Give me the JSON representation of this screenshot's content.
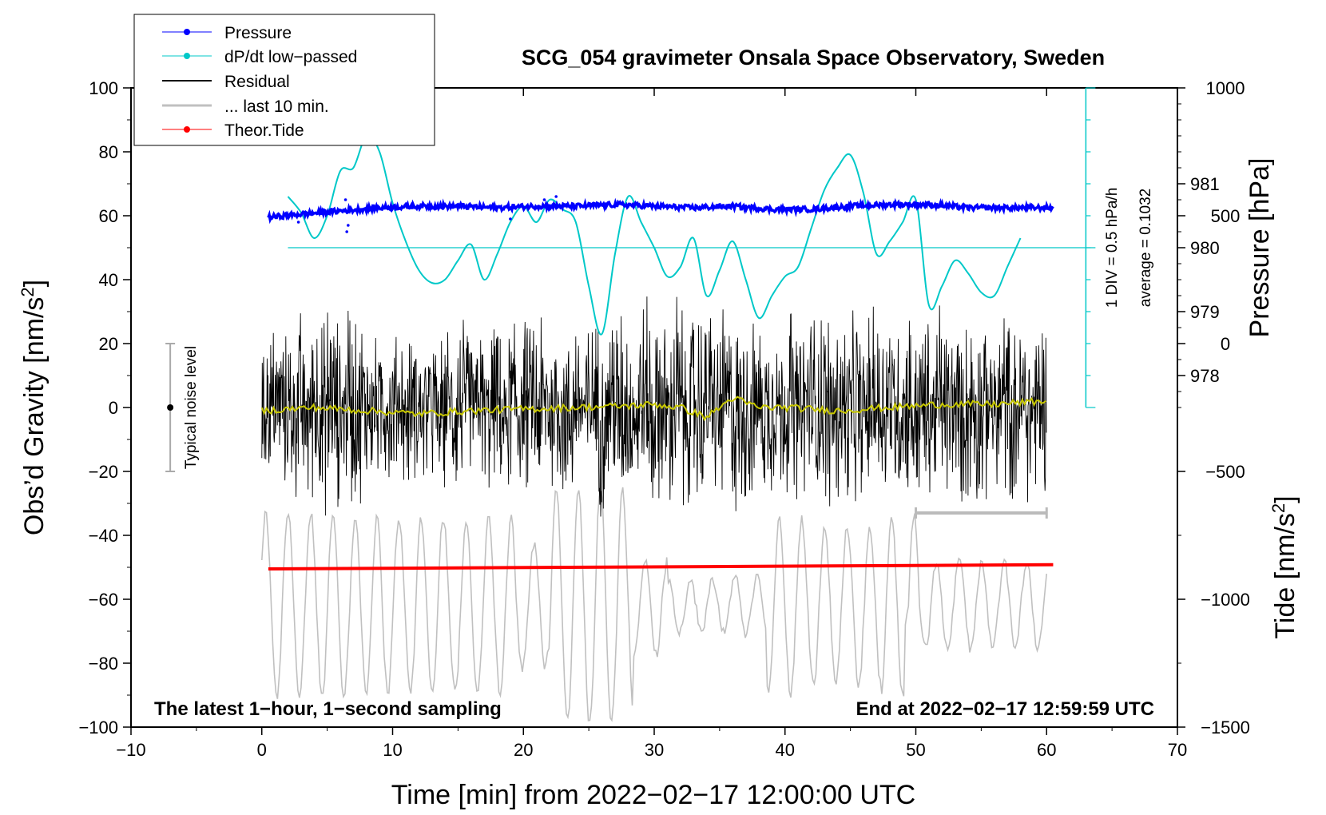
{
  "chart_data": {
    "type": "line",
    "title": "SCG_054 gravimeter Onsala Space Observatory, Sweden",
    "xlabel": "Time [min] from 2022−02−17 12:00:00 UTC",
    "ylabel_left": "Obs’d Gravity [nm/s",
    "ylabel_left_sup": "2",
    "ylabel_left_close": "]",
    "ylabel_right_pressure": "Pressure [hPa]",
    "ylabel_right_tide": "Tide [nm/s",
    "ylabel_right_tide_sup": "2",
    "ylabel_right_tide_close": "]",
    "xlim": [
      -10,
      70
    ],
    "ylim": [
      -100,
      100
    ],
    "x_ticks": [
      -10,
      0,
      10,
      20,
      30,
      40,
      50,
      60,
      70
    ],
    "x_tick_labels": [
      "−10",
      "0",
      "10",
      "20",
      "30",
      "40",
      "50",
      "60",
      "70"
    ],
    "y_ticks": [
      -100,
      -80,
      -60,
      -40,
      -20,
      0,
      20,
      40,
      60,
      80,
      100
    ],
    "y_tick_labels": [
      "−100",
      "−80",
      "−60",
      "−40",
      "−20",
      "0",
      "20",
      "40",
      "60",
      "80",
      "100"
    ],
    "pressure_ticks": [
      978,
      979,
      980,
      981
    ],
    "pressure_tick_labels": [
      "978",
      "979",
      "980",
      "981"
    ],
    "pressure_gravity_map": {
      "hpa_at_0": 977.5,
      "nms2_per_hpa": 20
    },
    "tide_ticks": [
      -1500,
      -1000,
      -500,
      0,
      500,
      1000
    ],
    "tide_tick_labels": [
      "−1500",
      "−1000",
      "−500",
      "0",
      "500",
      "1000"
    ],
    "tide_gravity_map": {
      "tide_at_minus100": -1500,
      "tide_per_nms2": 12.5
    },
    "legend": [
      {
        "label": "Pressure",
        "color": "#0000ff",
        "style": "line-dot"
      },
      {
        "label": "dP/dt low−passed",
        "color": "#00c8c8",
        "style": "line-dot"
      },
      {
        "label": "Residual",
        "color": "#000000",
        "style": "line"
      },
      {
        "label": "... last 10 min.",
        "color": "#c0c0c0",
        "style": "line"
      },
      {
        "label": "Theor.Tide",
        "color": "#ff0000",
        "style": "line-dot"
      }
    ],
    "legend_position": "top-left",
    "annotations": {
      "bottom_left": "The latest 1−hour, 1−second sampling",
      "bottom_right": "End at 2022−02−17 12:59:59 UTC",
      "noise_label": "Typical noise level",
      "noise_level_range": [
        -20,
        20
      ],
      "noise_center": 0,
      "noise_x": -7,
      "div_label": "1 DIV = 0.5 hPa/h",
      "average_label": "average = 0.1032",
      "last10_bar_range": [
        50,
        60
      ],
      "last10_bar_y": -33
    },
    "dpdt_scale": {
      "x": 63,
      "y_range": [
        0,
        100
      ],
      "zero_line_y": 50,
      "divisions": 10
    },
    "series": [
      {
        "name": "Pressure (shown in gravity units)",
        "color": "#0000ff",
        "x": [
          0.5,
          3,
          6,
          9,
          12,
          15,
          18,
          21,
          24,
          27,
          30,
          33,
          36,
          39,
          42,
          45,
          48,
          51,
          54,
          57,
          60.5
        ],
        "y": [
          59.5,
          60.5,
          61.5,
          62.5,
          63,
          63,
          62.5,
          63,
          63,
          63.5,
          63,
          62.5,
          63,
          62,
          62,
          63,
          63.5,
          63.5,
          62.5,
          62.5,
          62.5
        ]
      },
      {
        "name": "dP/dt low-passed (shown in gravity units)",
        "color": "#00c8c8",
        "x": [
          2,
          3,
          4,
          5,
          6,
          7,
          8,
          9,
          10,
          11,
          12,
          13,
          14,
          15,
          16,
          17,
          18,
          19,
          20,
          21,
          22,
          23,
          24,
          25,
          26,
          27,
          28,
          29,
          30,
          31,
          32,
          33,
          34,
          35,
          36,
          37,
          38,
          39,
          40,
          41,
          42,
          43,
          44,
          45,
          46,
          47,
          48,
          49,
          50,
          51,
          52,
          53,
          54,
          55,
          56,
          57,
          58
        ],
        "y": [
          66,
          61,
          53,
          60,
          74,
          75,
          85,
          80,
          64,
          52,
          43,
          39,
          40,
          46,
          51,
          40,
          48,
          58,
          63,
          58,
          65,
          62,
          58,
          38,
          23,
          48,
          66,
          58,
          50,
          41,
          44,
          53,
          35,
          43,
          52,
          40,
          28,
          35,
          41,
          44,
          56,
          68,
          75,
          79,
          67,
          48,
          52,
          58,
          65,
          32,
          38,
          46,
          42,
          36,
          35,
          44,
          53
        ]
      },
      {
        "name": "Residual",
        "color": "#000000",
        "x_range": [
          0,
          60
        ],
        "amplitude_profile": {
          "x": [
            0,
            5,
            10,
            20,
            30,
            40,
            50,
            60
          ],
          "amp": [
            24,
            30,
            20,
            24,
            30,
            26,
            28,
            24
          ]
        }
      },
      {
        "name": "Smoothed residual",
        "color": "#c8c800",
        "x": [
          0,
          4,
          8,
          12,
          16,
          20,
          24,
          28,
          30,
          32,
          34,
          36,
          38,
          40,
          44,
          48,
          52,
          56,
          60
        ],
        "y": [
          -1,
          0,
          -1,
          -2,
          -1,
          -0.5,
          0,
          0.5,
          1,
          0,
          -3,
          3,
          0,
          0,
          -1,
          0,
          1,
          1,
          2
        ]
      },
      {
        "name": "... last 10 min. (shown in gravity units)",
        "color": "#c0c0c0",
        "x_range": [
          0,
          60
        ],
        "center": -62,
        "amplitude_range": [
          8,
          40
        ]
      },
      {
        "name": "Theor.Tide",
        "color": "#ff0000",
        "x": [
          0.5,
          60.5
        ],
        "y": [
          -50.5,
          -49.2
        ]
      }
    ]
  }
}
